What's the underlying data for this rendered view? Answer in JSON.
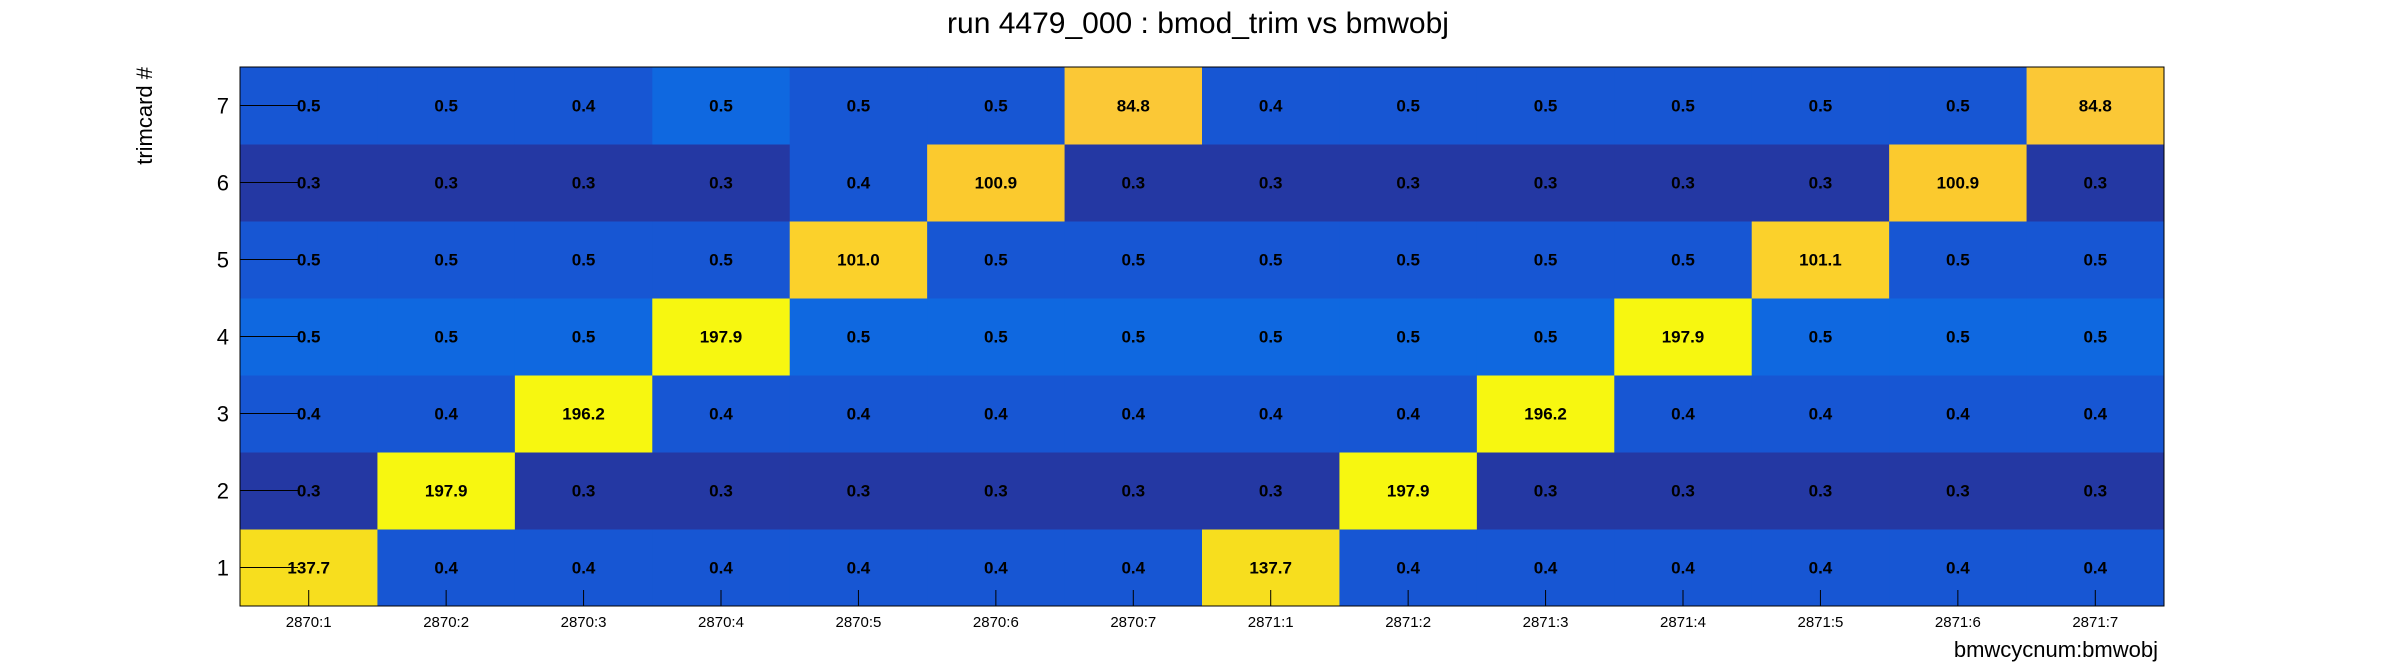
{
  "chart_data": {
    "type": "heatmap",
    "title": "run 4479_000 : bmod_trim vs bmwobj",
    "xlabel": "bmwcycnum:bmwobj",
    "ylabel": "trimcard #",
    "x_categories": [
      "2870:1",
      "2870:2",
      "2870:3",
      "2870:4",
      "2870:5",
      "2870:6",
      "2870:7",
      "2871:1",
      "2871:2",
      "2871:3",
      "2871:4",
      "2871:5",
      "2871:6",
      "2871:7"
    ],
    "y_categories": [
      "1",
      "2",
      "3",
      "4",
      "5",
      "6",
      "7"
    ],
    "values": [
      [
        137.7,
        0.4,
        0.4,
        0.4,
        0.4,
        0.4,
        0.4,
        137.7,
        0.4,
        0.4,
        0.4,
        0.4,
        0.4,
        0.4
      ],
      [
        0.3,
        197.9,
        0.3,
        0.3,
        0.3,
        0.3,
        0.3,
        0.3,
        197.9,
        0.3,
        0.3,
        0.3,
        0.3,
        0.3
      ],
      [
        0.4,
        0.4,
        196.2,
        0.4,
        0.4,
        0.4,
        0.4,
        0.4,
        0.4,
        196.2,
        0.4,
        0.4,
        0.4,
        0.4
      ],
      [
        0.5,
        0.5,
        0.5,
        197.9,
        0.5,
        0.5,
        0.5,
        0.5,
        0.5,
        0.5,
        197.9,
        0.5,
        0.5,
        0.5
      ],
      [
        0.5,
        0.5,
        0.5,
        0.5,
        101.0,
        0.5,
        0.5,
        0.5,
        0.5,
        0.5,
        0.5,
        101.1,
        0.5,
        0.5
      ],
      [
        0.3,
        0.3,
        0.3,
        0.3,
        0.4,
        100.9,
        0.3,
        0.3,
        0.3,
        0.3,
        0.3,
        0.3,
        100.9,
        0.3
      ],
      [
        0.5,
        0.5,
        0.4,
        0.5,
        0.5,
        0.5,
        84.8,
        0.4,
        0.5,
        0.5,
        0.5,
        0.5,
        0.5,
        84.8
      ]
    ],
    "cell_colors": [
      [
        "#F7DE1E",
        "#1756D3",
        "#1756D3",
        "#1756D3",
        "#1756D3",
        "#1756D3",
        "#1756D3",
        "#F7DE1E",
        "#1756D3",
        "#1756D3",
        "#1756D3",
        "#1756D3",
        "#1756D3",
        "#1756D3"
      ],
      [
        "#2438A3",
        "#F7F710",
        "#2438A3",
        "#2438A3",
        "#2438A3",
        "#2438A3",
        "#2438A3",
        "#2438A3",
        "#F7F710",
        "#2438A3",
        "#2438A3",
        "#2438A3",
        "#2438A3",
        "#2438A3"
      ],
      [
        "#1756D3",
        "#1756D3",
        "#F7F710",
        "#1756D3",
        "#1756D3",
        "#1756D3",
        "#1756D3",
        "#1756D3",
        "#1756D3",
        "#F7F710",
        "#1756D3",
        "#1756D3",
        "#1756D3",
        "#1756D3"
      ],
      [
        "#0F68E0",
        "#0F68E0",
        "#0F68E0",
        "#F7F710",
        "#0F68E0",
        "#0F68E0",
        "#0F68E0",
        "#0F68E0",
        "#0F68E0",
        "#0F68E0",
        "#F7F710",
        "#0F68E0",
        "#0F68E0",
        "#0F68E0"
      ],
      [
        "#1756D3",
        "#1756D3",
        "#1756D3",
        "#1756D3",
        "#FBD12B",
        "#1756D3",
        "#1756D3",
        "#1756D3",
        "#1756D3",
        "#1756D3",
        "#1756D3",
        "#FBD12B",
        "#1756D3",
        "#1756D3"
      ],
      [
        "#2438A3",
        "#2438A3",
        "#2438A3",
        "#2438A3",
        "#1756D3",
        "#FBCA2E",
        "#2438A3",
        "#2438A3",
        "#2438A3",
        "#2438A3",
        "#2438A3",
        "#2438A3",
        "#FBCA2E",
        "#2438A3"
      ],
      [
        "#1756D3",
        "#1756D3",
        "#1756D3",
        "#0F68E0",
        "#1756D3",
        "#1756D3",
        "#FBC836",
        "#1756D3",
        "#1756D3",
        "#1756D3",
        "#1756D3",
        "#1756D3",
        "#1756D3",
        "#FBC836"
      ]
    ],
    "grid": false,
    "legend": "none"
  }
}
